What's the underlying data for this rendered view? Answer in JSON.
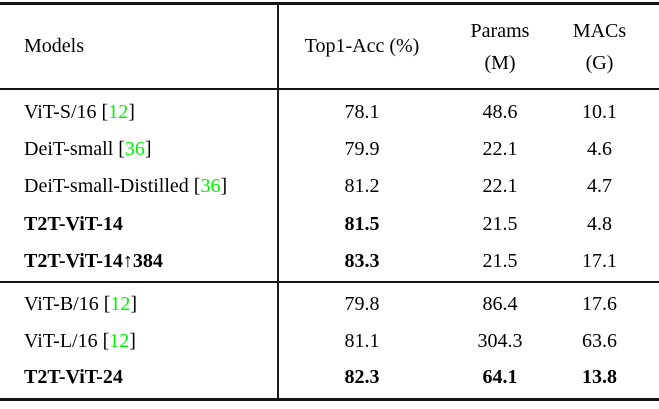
{
  "figure": {
    "type": "table",
    "colors": {
      "citation_green": "#00f000",
      "text": "#000000",
      "rule": "#141414",
      "background": "#ffffff"
    },
    "header": {
      "models": "Models",
      "top1": "Top1-Acc (%)",
      "params": [
        "Params",
        "(M)"
      ],
      "macs": [
        "MACs",
        "(G)"
      ]
    },
    "rows": [
      {
        "model_prefix": "ViT-S/16 [",
        "model_cite": "12",
        "model_suffix": "]",
        "top1": "78.1",
        "params": "48.6",
        "macs": "10.1"
      },
      {
        "model_prefix": "DeiT-small [",
        "model_cite": "36",
        "model_suffix": "]",
        "top1": "79.9",
        "params": "22.1",
        "macs": "4.6"
      },
      {
        "model_prefix": "DeiT-small-Distilled [",
        "model_cite": "36",
        "model_suffix": "]",
        "top1": "81.2",
        "params": "22.1",
        "macs": "4.7"
      },
      {
        "model_prefix": "T2T-ViT-14",
        "model_cite": "",
        "model_suffix": "",
        "top1": "81.5",
        "params": "21.5",
        "macs": "4.8"
      },
      {
        "model_prefix": "T2T-ViT-14↑384",
        "model_cite": "",
        "model_suffix": "",
        "top1": "83.3",
        "params": "21.5",
        "macs": "17.1"
      },
      {
        "model_prefix": "ViT-B/16 [",
        "model_cite": "12",
        "model_suffix": "]",
        "top1": "79.8",
        "params": "86.4",
        "macs": "17.6"
      },
      {
        "model_prefix": "ViT-L/16 [",
        "model_cite": "12",
        "model_suffix": "]",
        "top1": "81.1",
        "params": "304.3",
        "macs": "63.6"
      },
      {
        "model_prefix": "T2T-ViT-24",
        "model_cite": "",
        "model_suffix": "",
        "top1": "82.3",
        "params": "64.1",
        "macs": "13.8"
      }
    ]
  }
}
